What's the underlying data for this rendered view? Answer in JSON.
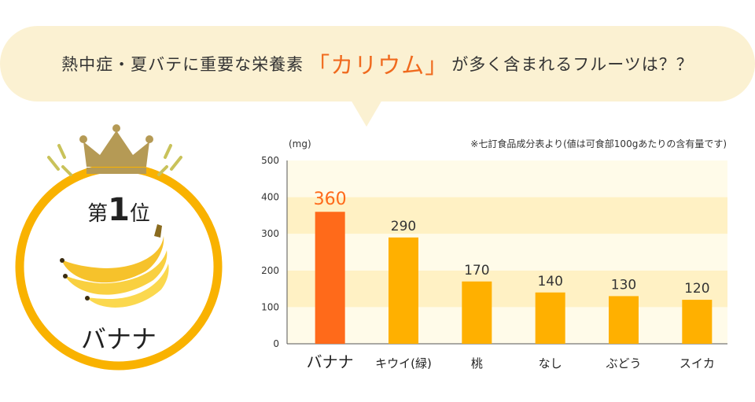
{
  "headline": {
    "before": "熱中症・夏バテに重要な栄養素",
    "highlight": "「カリウム」",
    "after": "が多く含まれるフルーツは？？"
  },
  "ranking": {
    "prefix": "第",
    "number": "1",
    "suffix": "位",
    "fruit": "バナナ"
  },
  "chart_data": {
    "type": "bar",
    "unit_label": "(mg)",
    "note": "※七訂食品成分表より(値は可食部100gあたりの含有量です)",
    "categories": [
      "バナナ",
      "キウイ(緑)",
      "桃",
      "なし",
      "ぶどう",
      "スイカ"
    ],
    "values": [
      360,
      290,
      170,
      140,
      130,
      120
    ],
    "yticks": [
      0,
      100,
      200,
      300,
      400,
      500
    ],
    "ylim": [
      0,
      500
    ],
    "grid": "alternating horizontal bands",
    "highlight_index": 0
  },
  "colors": {
    "bubble": "#fbf1d2",
    "highlight_text": "#f06a1e",
    "bar_top": "#ff6a1a",
    "bar": "#ffb000",
    "band_light": "#fffbe9",
    "band_dark": "#fff1c4",
    "ring": "#f9b200",
    "crown": "#b59a55"
  }
}
